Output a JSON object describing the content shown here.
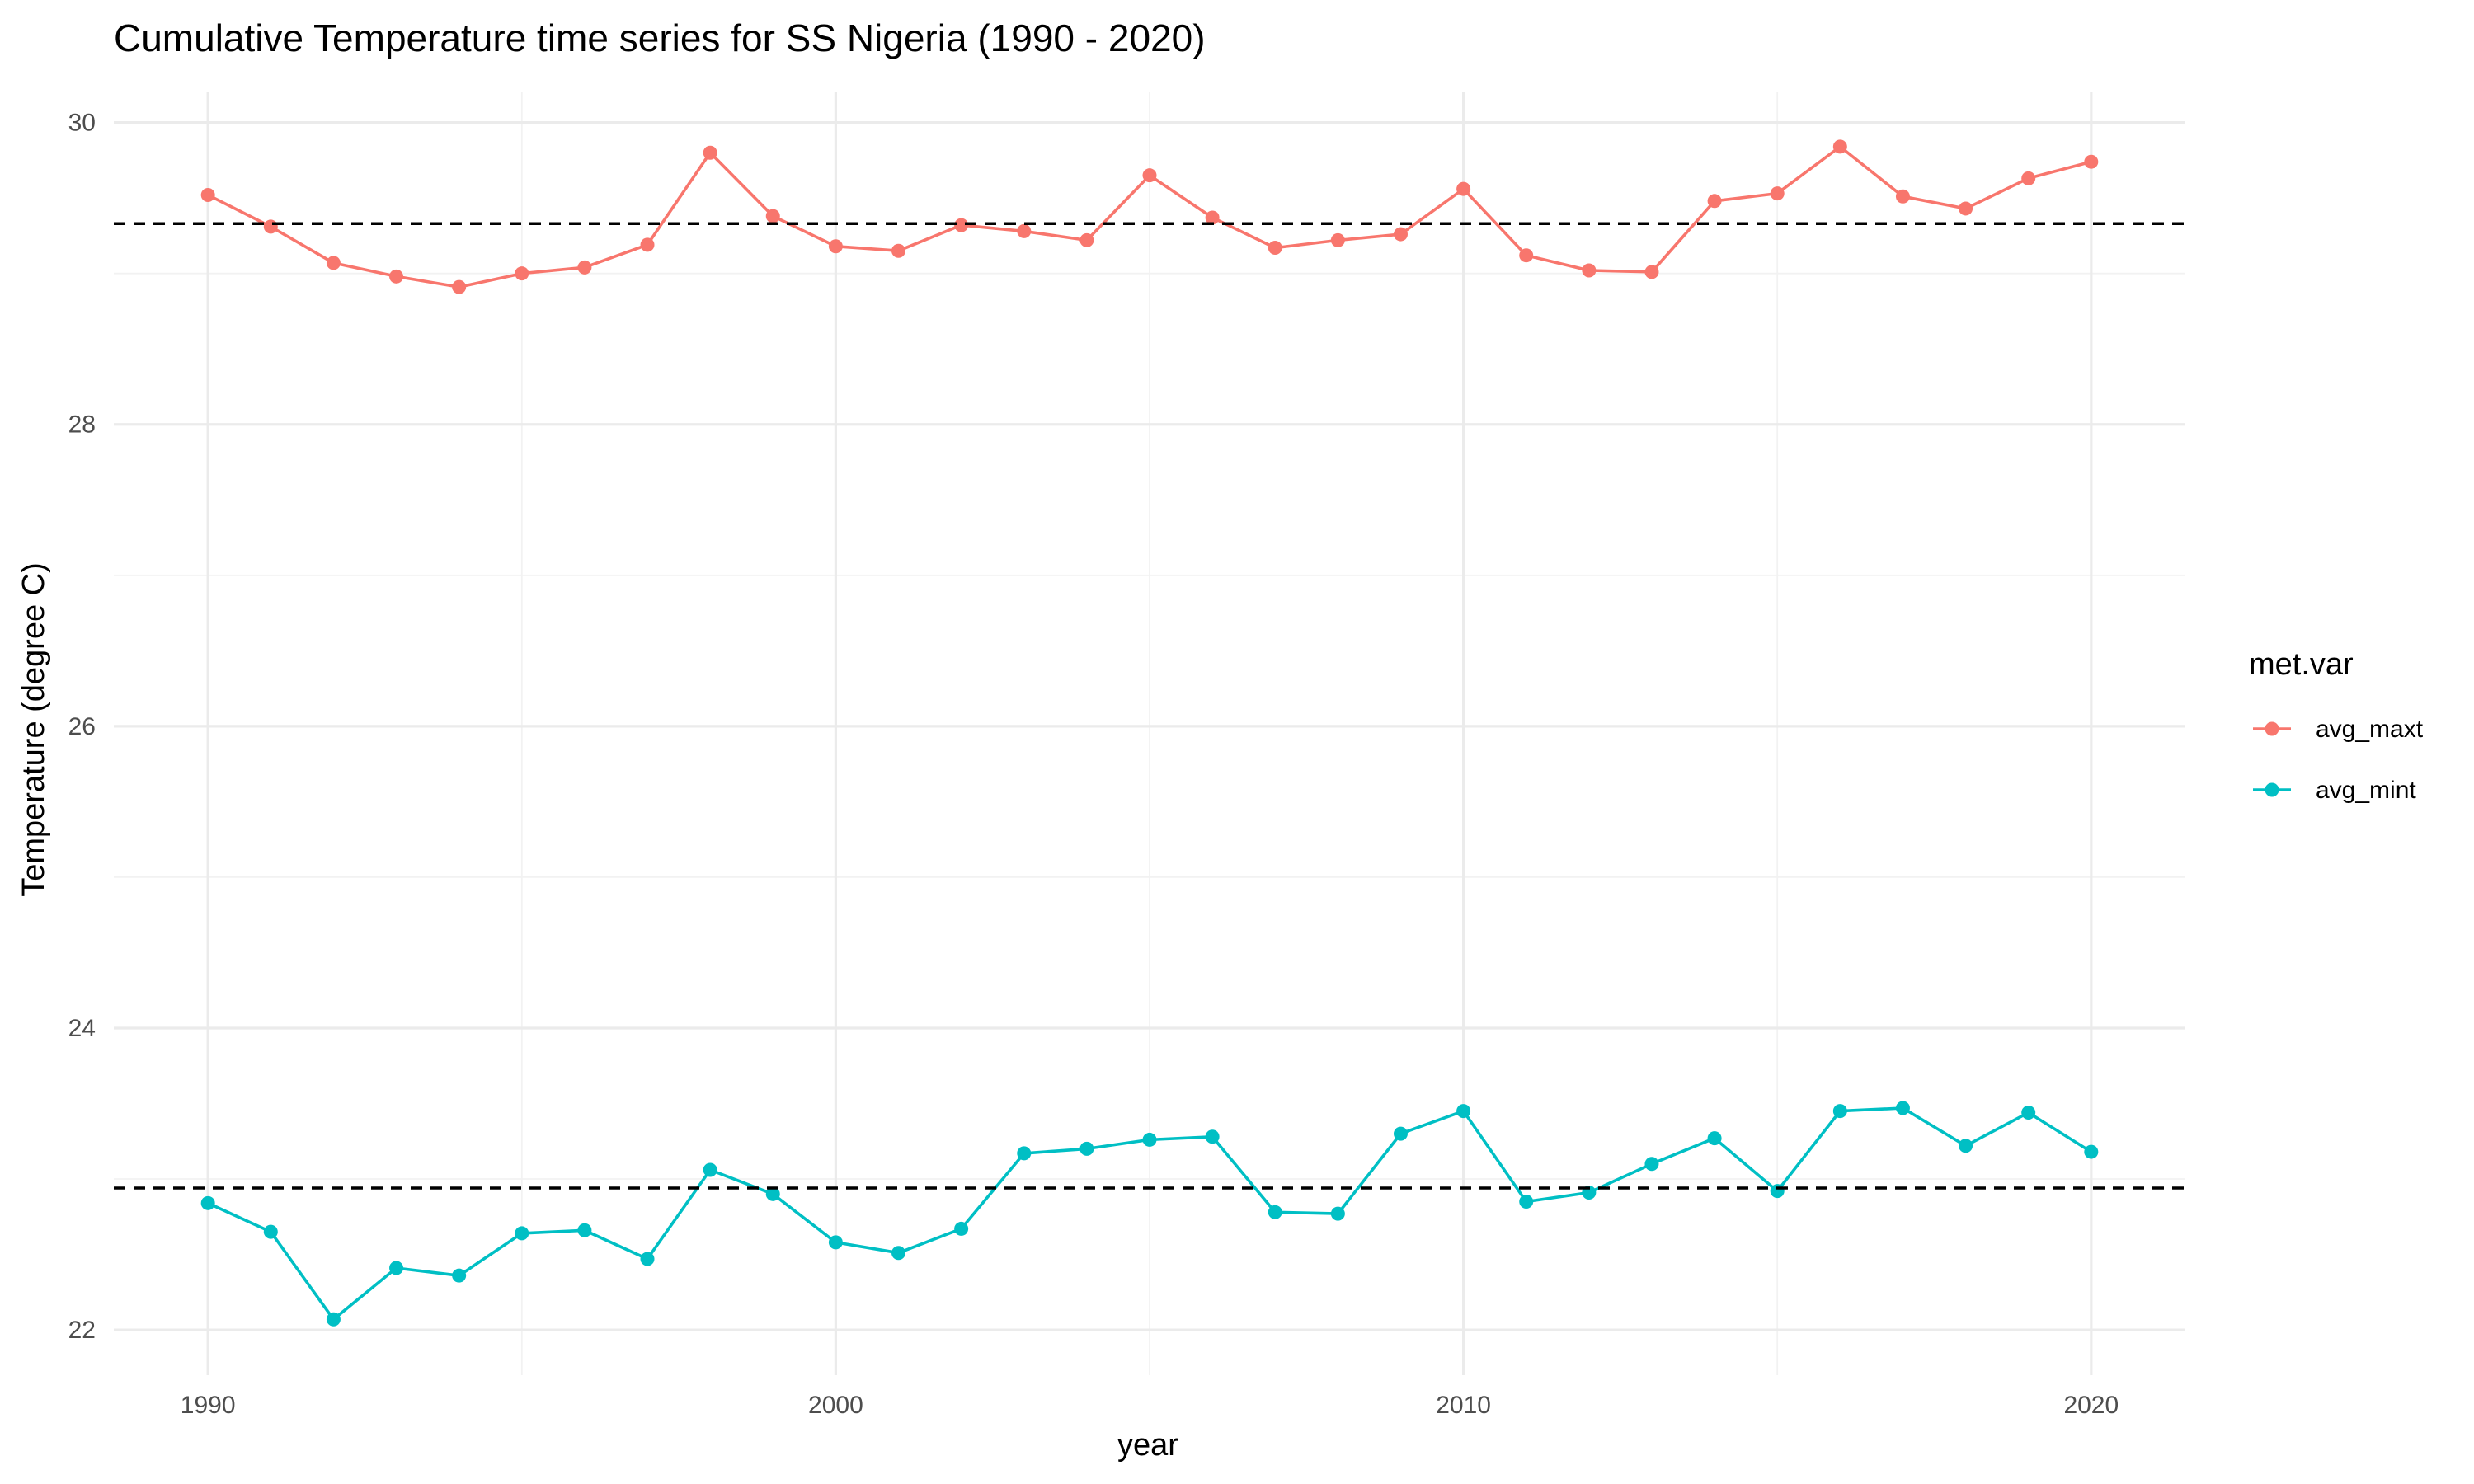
{
  "chart_data": {
    "type": "line",
    "title": "Cumulative Temperature time series for SS Nigeria (1990 - 2020)",
    "xlabel": "year",
    "ylabel": "Temperature (degree C)",
    "xlim": [
      1988.5,
      2021.5
    ],
    "ylim": [
      21.7,
      30.2
    ],
    "x_ticks": [
      1990,
      2000,
      2010,
      2020
    ],
    "y_ticks": [
      22,
      24,
      26,
      28,
      30
    ],
    "grid": true,
    "legend": {
      "title": "met.var",
      "position": "right"
    },
    "x": [
      1990,
      1991,
      1992,
      1993,
      1994,
      1995,
      1996,
      1997,
      1998,
      1999,
      2000,
      2001,
      2002,
      2003,
      2004,
      2005,
      2006,
      2007,
      2008,
      2009,
      2010,
      2011,
      2012,
      2013,
      2014,
      2015,
      2016,
      2017,
      2018,
      2019,
      2020
    ],
    "series": [
      {
        "name": "avg_maxt",
        "color": "#F8766D",
        "values": [
          29.52,
          29.31,
          29.07,
          28.98,
          28.91,
          29.0,
          29.04,
          29.19,
          29.8,
          29.38,
          29.18,
          29.15,
          29.32,
          29.28,
          29.22,
          29.65,
          29.37,
          29.17,
          29.22,
          29.26,
          29.56,
          29.12,
          29.02,
          29.01,
          29.48,
          29.53,
          29.84,
          29.51,
          29.43,
          29.63,
          29.74
        ]
      },
      {
        "name": "avg_mint",
        "color": "#00BFC4",
        "values": [
          22.84,
          22.65,
          22.07,
          22.41,
          22.36,
          22.64,
          22.66,
          22.47,
          23.06,
          22.9,
          22.58,
          22.51,
          22.67,
          23.17,
          23.2,
          23.26,
          23.28,
          22.78,
          22.77,
          23.3,
          23.45,
          22.85,
          22.91,
          23.1,
          23.27,
          22.92,
          23.45,
          23.47,
          23.22,
          23.44,
          23.18
        ]
      }
    ],
    "reference_lines": [
      {
        "y": 29.33,
        "style": "dashed",
        "color": "#000000"
      },
      {
        "y": 22.94,
        "style": "dashed",
        "color": "#000000"
      }
    ]
  }
}
